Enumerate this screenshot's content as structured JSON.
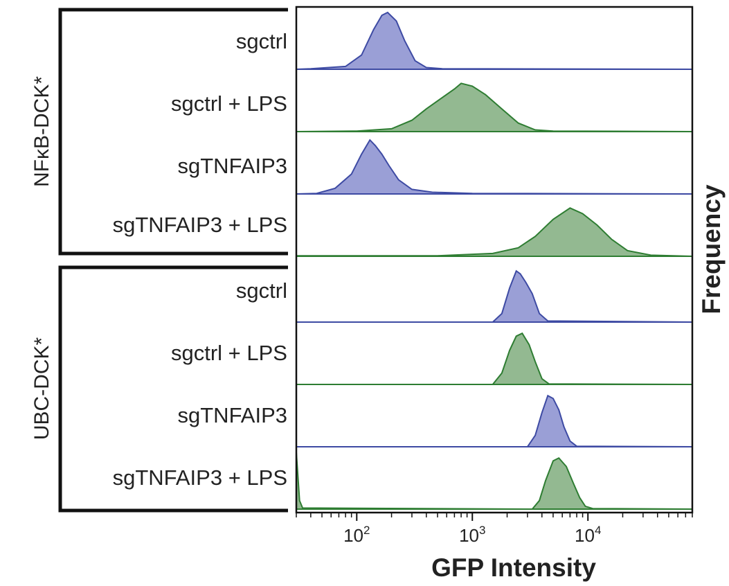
{
  "chart_data": {
    "type": "area",
    "subtype": "stacked-histograms",
    "xlabel": "GFP Intensity",
    "ylabel": "Frequency",
    "xscale": "log",
    "xlim": [
      30,
      80000
    ],
    "ticks": [
      {
        "value": 100,
        "base": "10",
        "exp": "2"
      },
      {
        "value": 1000,
        "base": "10",
        "exp": "3"
      },
      {
        "value": 10000,
        "base": "10",
        "exp": "4"
      }
    ],
    "colors": {
      "blue_fill": "#9a9fd6",
      "blue_line": "#3d4aa3",
      "green_fill": "#93b991",
      "green_line": "#2e7d32"
    },
    "groups": [
      {
        "name": "NFκB-DCK*",
        "rows": [
          {
            "label": "sgctrl",
            "color": "blue",
            "curve": [
              [
                40,
                0.01
              ],
              [
                80,
                0.05
              ],
              [
                110,
                0.25
              ],
              [
                140,
                0.7
              ],
              [
                165,
                0.95
              ],
              [
                185,
                1.0
              ],
              [
                220,
                0.85
              ],
              [
                260,
                0.5
              ],
              [
                320,
                0.15
              ],
              [
                400,
                0.03
              ],
              [
                550,
                0.01
              ],
              [
                80000,
                0
              ]
            ]
          },
          {
            "label": "sgctrl + LPS",
            "color": "green",
            "curve": [
              [
                100,
                0.01
              ],
              [
                200,
                0.05
              ],
              [
                300,
                0.2
              ],
              [
                400,
                0.4
              ],
              [
                550,
                0.6
              ],
              [
                700,
                0.75
              ],
              [
                800,
                0.85
              ],
              [
                1000,
                0.8
              ],
              [
                1300,
                0.65
              ],
              [
                1800,
                0.4
              ],
              [
                2500,
                0.15
              ],
              [
                3500,
                0.03
              ],
              [
                5000,
                0.01
              ],
              [
                80000,
                0
              ]
            ]
          },
          {
            "label": "sgTNFAIP3",
            "color": "blue",
            "curve": [
              [
                45,
                0.01
              ],
              [
                65,
                0.1
              ],
              [
                90,
                0.35
              ],
              [
                110,
                0.7
              ],
              [
                130,
                0.95
              ],
              [
                145,
                0.85
              ],
              [
                165,
                0.7
              ],
              [
                190,
                0.5
              ],
              [
                230,
                0.25
              ],
              [
                300,
                0.08
              ],
              [
                450,
                0.03
              ],
              [
                1000,
                0.01
              ],
              [
                80000,
                0
              ]
            ]
          },
          {
            "label": "sgTNFAIP3 + LPS",
            "color": "green",
            "curve": [
              [
                30,
                0.01
              ],
              [
                500,
                0.01
              ],
              [
                1500,
                0.05
              ],
              [
                2500,
                0.15
              ],
              [
                3500,
                0.35
              ],
              [
                5000,
                0.65
              ],
              [
                7000,
                0.85
              ],
              [
                9000,
                0.75
              ],
              [
                12000,
                0.55
              ],
              [
                16000,
                0.3
              ],
              [
                22000,
                0.1
              ],
              [
                35000,
                0.02
              ],
              [
                80000,
                0
              ]
            ]
          }
        ]
      },
      {
        "name": "UBC-DCK*",
        "rows": [
          {
            "label": "sgctrl",
            "color": "blue",
            "curve": [
              [
                1500,
                0
              ],
              [
                1800,
                0.15
              ],
              [
                2100,
                0.6
              ],
              [
                2400,
                0.9
              ],
              [
                2600,
                0.85
              ],
              [
                2900,
                0.7
              ],
              [
                3300,
                0.5
              ],
              [
                3800,
                0.15
              ],
              [
                4500,
                0.02
              ],
              [
                80000,
                0
              ]
            ]
          },
          {
            "label": "sgctrl + LPS",
            "color": "green",
            "curve": [
              [
                1500,
                0
              ],
              [
                1800,
                0.2
              ],
              [
                2100,
                0.6
              ],
              [
                2400,
                0.85
              ],
              [
                2700,
                0.9
              ],
              [
                3100,
                0.7
              ],
              [
                3500,
                0.4
              ],
              [
                4000,
                0.1
              ],
              [
                4600,
                0.01
              ],
              [
                80000,
                0
              ]
            ]
          },
          {
            "label": "sgTNFAIP3",
            "color": "blue",
            "curve": [
              [
                3000,
                0
              ],
              [
                3500,
                0.2
              ],
              [
                4000,
                0.6
              ],
              [
                4500,
                0.9
              ],
              [
                5000,
                0.85
              ],
              [
                5600,
                0.65
              ],
              [
                6200,
                0.35
              ],
              [
                7000,
                0.1
              ],
              [
                8000,
                0.01
              ],
              [
                80000,
                0
              ]
            ]
          },
          {
            "label": "sgTNFAIP3 + LPS",
            "color": "green",
            "curve": [
              [
                30,
                1.0
              ],
              [
                32,
                0.15
              ],
              [
                34,
                0.02
              ],
              [
                3300,
                0
              ],
              [
                3800,
                0.15
              ],
              [
                4300,
                0.5
              ],
              [
                5000,
                0.85
              ],
              [
                5600,
                0.9
              ],
              [
                6500,
                0.75
              ],
              [
                7500,
                0.45
              ],
              [
                8500,
                0.2
              ],
              [
                9500,
                0.05
              ],
              [
                11000,
                0.01
              ],
              [
                80000,
                0
              ]
            ]
          }
        ]
      }
    ]
  }
}
